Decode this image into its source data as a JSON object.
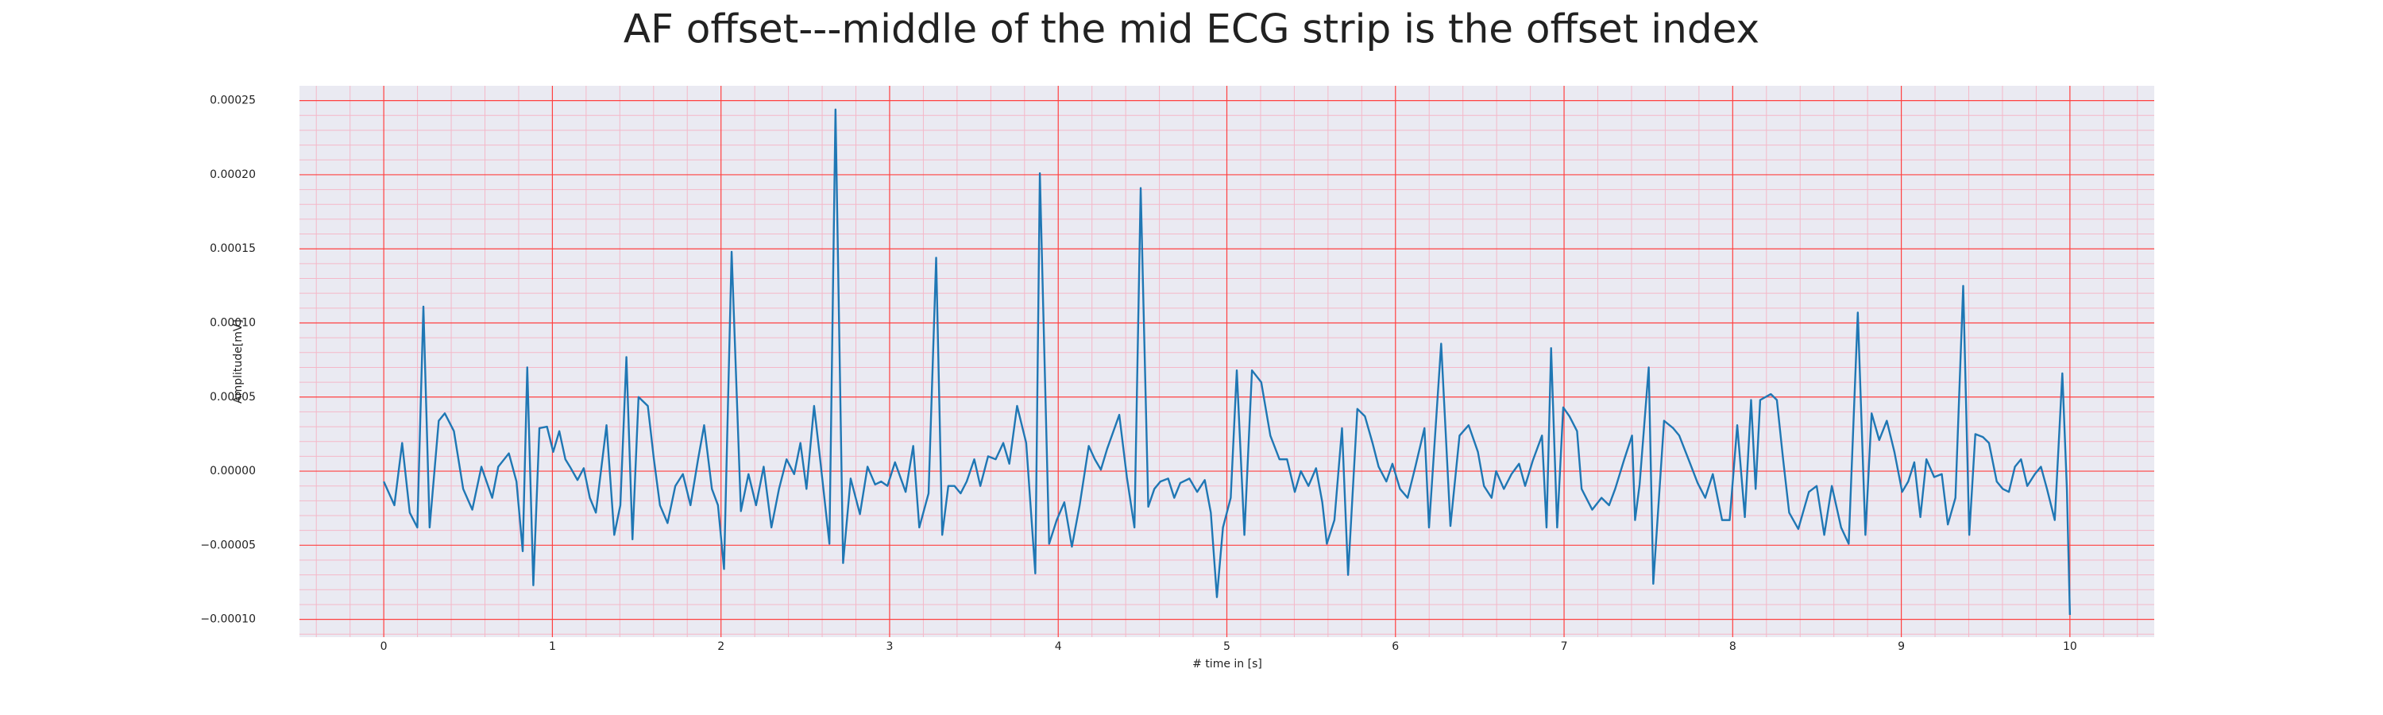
{
  "chart_data": {
    "type": "line",
    "title": "AF offset---middle of the mid ECG strip is the offset index",
    "xlabel": "# time in [s]",
    "ylabel": "Amplitude[mV]",
    "color": "#1f77b4",
    "grid": true,
    "grid_color": "#ff4040",
    "minor_grid": true,
    "minor_grid_color": "#f4b8c8",
    "background": "#eaeaf2",
    "xlim": [
      -0.5,
      10.5
    ],
    "xticks": [
      0,
      1,
      2,
      3,
      4,
      5,
      6,
      7,
      8,
      9,
      10
    ],
    "ylim": [
      -0.000112,
      0.00026
    ],
    "yticks": [
      {
        "value": -0.0001,
        "label": "−0.00010"
      },
      {
        "value": -5e-05,
        "label": "−0.00005"
      },
      {
        "value": 0,
        "label": "0.00000"
      },
      {
        "value": 5e-05,
        "label": "0.00005"
      },
      {
        "value": 0.0001,
        "label": "0.00010"
      },
      {
        "value": 0.00015,
        "label": "0.00015"
      },
      {
        "value": 0.0002,
        "label": "0.00020"
      },
      {
        "value": 0.00025,
        "label": "0.00025"
      }
    ],
    "x": [
      0,
      0.063,
      0.109,
      0.154,
      0.199,
      0.235,
      0.272,
      0.326,
      0.362,
      0.416,
      0.471,
      0.525,
      0.579,
      0.643,
      0.679,
      0.742,
      0.787,
      0.824,
      0.851,
      0.887,
      0.923,
      0.968,
      1.005,
      1.041,
      1.077,
      1.104,
      1.149,
      1.186,
      1.222,
      1.258,
      1.321,
      1.367,
      1.403,
      1.439,
      1.475,
      1.511,
      1.566,
      1.602,
      1.638,
      1.683,
      1.729,
      1.774,
      1.819,
      1.864,
      1.9,
      1.946,
      1.982,
      2.018,
      2.063,
      2.118,
      2.163,
      2.208,
      2.253,
      2.299,
      2.344,
      2.389,
      2.434,
      2.471,
      2.507,
      2.552,
      2.588,
      2.643,
      2.679,
      2.724,
      2.769,
      2.824,
      2.869,
      2.914,
      2.95,
      2.987,
      3.032,
      3.095,
      3.14,
      3.176,
      3.231,
      3.276,
      3.312,
      3.348,
      3.385,
      3.421,
      3.457,
      3.502,
      3.538,
      3.584,
      3.629,
      3.674,
      3.71,
      3.756,
      3.81,
      3.864,
      3.891,
      3.946,
      3.991,
      4.036,
      4.081,
      4.127,
      4.181,
      4.217,
      4.253,
      4.29,
      4.362,
      4.407,
      4.452,
      4.489,
      4.534,
      4.57,
      4.606,
      4.652,
      4.688,
      4.724,
      4.778,
      4.824,
      4.869,
      4.905,
      4.941,
      4.977,
      5.023,
      5.059,
      5.104,
      5.149,
      5.204,
      5.258,
      5.312,
      5.357,
      5.403,
      5.439,
      5.484,
      5.529,
      5.566,
      5.593,
      5.638,
      5.683,
      5.719,
      5.774,
      5.819,
      5.864,
      5.9,
      5.946,
      5.982,
      6.027,
      6.072,
      6.118,
      6.172,
      6.199,
      6.271,
      6.326,
      6.38,
      6.434,
      6.489,
      6.525,
      6.57,
      6.597,
      6.643,
      6.688,
      6.733,
      6.769,
      6.814,
      6.869,
      6.896,
      6.923,
      6.959,
      6.995,
      7.032,
      7.077,
      7.104,
      7.167,
      7.222,
      7.267,
      7.303,
      7.357,
      7.403,
      7.421,
      7.448,
      7.502,
      7.529,
      7.593,
      7.647,
      7.683,
      7.738,
      7.792,
      7.837,
      7.882,
      7.937,
      7.982,
      8.027,
      8.072,
      8.109,
      8.136,
      8.163,
      8.226,
      8.262,
      8.299,
      8.335,
      8.389,
      8.452,
      8.498,
      8.543,
      8.588,
      8.643,
      8.688,
      8.742,
      8.787,
      8.824,
      8.869,
      8.914,
      8.959,
      9.005,
      9.041,
      9.077,
      9.113,
      9.149,
      9.195,
      9.24,
      9.276,
      9.321,
      9.367,
      9.403,
      9.439,
      9.484,
      9.52,
      9.566,
      9.602,
      9.638,
      9.674,
      9.71,
      9.747,
      9.792,
      9.828,
      9.864,
      9.91,
      9.955,
      9.982,
      10.0
    ],
    "values": [
      -7e-06,
      -2.3e-05,
      1.9e-05,
      -2.8e-05,
      -3.8e-05,
      0.000111,
      -3.8e-05,
      3.4e-05,
      3.9e-05,
      2.7e-05,
      -1.2e-05,
      -2.6e-05,
      3e-06,
      -1.8e-05,
      3e-06,
      1.2e-05,
      -7e-06,
      -5.4e-05,
      7e-05,
      -7.7e-05,
      2.9e-05,
      3e-05,
      1.3e-05,
      2.7e-05,
      8e-06,
      3e-06,
      -6e-06,
      2e-06,
      -1.8e-05,
      -2.8e-05,
      3.1e-05,
      -4.3e-05,
      -2.3e-05,
      7.7e-05,
      -4.6e-05,
      5e-05,
      4.4e-05,
      8e-06,
      -2.3e-05,
      -3.5e-05,
      -1e-05,
      -2e-06,
      -2.3e-05,
      8e-06,
      3.1e-05,
      -1.2e-05,
      -2.3e-05,
      -6.6e-05,
      0.000148,
      -2.7e-05,
      -2e-06,
      -2.3e-05,
      3e-06,
      -3.8e-05,
      -1.2e-05,
      8e-06,
      -2e-06,
      1.9e-05,
      -1.2e-05,
      4.4e-05,
      8e-06,
      -4.9e-05,
      0.000244,
      -6.2e-05,
      -5e-06,
      -2.9e-05,
      3e-06,
      -9e-06,
      -7e-06,
      -1e-05,
      6e-06,
      -1.4e-05,
      1.7e-05,
      -3.8e-05,
      -1.5e-05,
      0.000144,
      -4.3e-05,
      -1e-05,
      -1e-05,
      -1.5e-05,
      -7e-06,
      8e-06,
      -1e-05,
      1e-05,
      8e-06,
      1.9e-05,
      5e-06,
      4.4e-05,
      1.9e-05,
      -6.9e-05,
      0.000201,
      -4.9e-05,
      -3.3e-05,
      -2.1e-05,
      -5.1e-05,
      -2.3e-05,
      1.7e-05,
      8e-06,
      1e-06,
      1.5e-05,
      3.8e-05,
      -4e-06,
      -3.8e-05,
      0.000191,
      -2.4e-05,
      -1.2e-05,
      -7e-06,
      -5e-06,
      -1.8e-05,
      -8e-06,
      -5e-06,
      -1.4e-05,
      -6e-06,
      -2.8e-05,
      -8.5e-05,
      -3.8e-05,
      -1.8e-05,
      6.8e-05,
      -4.3e-05,
      6.8e-05,
      6e-05,
      2.4e-05,
      8e-06,
      8e-06,
      -1.4e-05,
      0,
      -1e-05,
      2e-06,
      -2.1e-05,
      -4.9e-05,
      -3.3e-05,
      2.9e-05,
      -7e-05,
      4.2e-05,
      3.7e-05,
      1.9e-05,
      3e-06,
      -7e-06,
      5e-06,
      -1.2e-05,
      -1.8e-05,
      3e-06,
      2.9e-05,
      -3.8e-05,
      8.6e-05,
      -3.7e-05,
      2.4e-05,
      3.1e-05,
      1.3e-05,
      -1e-05,
      -1.8e-05,
      0,
      -1.2e-05,
      -2e-06,
      5e-06,
      -1e-05,
      7e-06,
      2.4e-05,
      -3.8e-05,
      8.3e-05,
      -3.8e-05,
      4.3e-05,
      3.7e-05,
      2.7e-05,
      -1.2e-05,
      -2.6e-05,
      -1.8e-05,
      -2.3e-05,
      -1.2e-05,
      8e-06,
      2.4e-05,
      -3.3e-05,
      -9e-06,
      7e-05,
      -7.6e-05,
      3.4e-05,
      2.9e-05,
      2.4e-05,
      8e-06,
      -8e-06,
      -1.8e-05,
      -2e-06,
      -3.3e-05,
      -3.3e-05,
      3.1e-05,
      -3.1e-05,
      4.8e-05,
      -1.2e-05,
      4.8e-05,
      5.2e-05,
      4.8e-05,
      8e-06,
      -2.8e-05,
      -3.9e-05,
      -1.4e-05,
      -1e-05,
      -4.3e-05,
      -1e-05,
      -3.8e-05,
      -4.9e-05,
      0.000107,
      -4.3e-05,
      3.9e-05,
      2.1e-05,
      3.4e-05,
      1.3e-05,
      -1.4e-05,
      -7e-06,
      6e-06,
      -3.1e-05,
      8e-06,
      -4e-06,
      -2e-06,
      -3.6e-05,
      -1.8e-05,
      0.000125,
      -4.3e-05,
      2.5e-05,
      2.3e-05,
      1.9e-05,
      -7e-06,
      -1.2e-05,
      -1.4e-05,
      3e-06,
      8e-06,
      -1e-05,
      -2e-06,
      3e-06,
      -1.2e-05,
      -3.3e-05,
      6.6e-05,
      -1.2e-05,
      -9.7e-05
    ]
  }
}
